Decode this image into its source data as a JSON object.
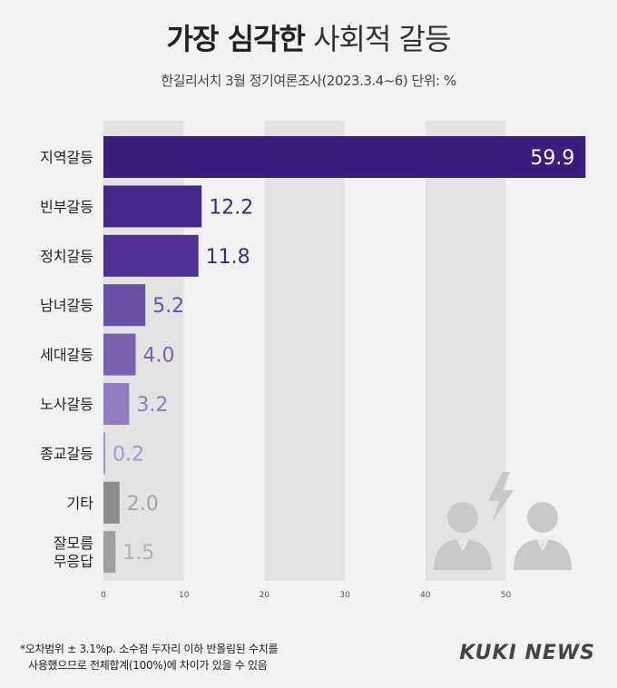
{
  "header": {
    "title_bold": "가장 심각한",
    "title_light": "사회적 갈등",
    "subtitle": "한길리서치 3월 정기여론조사(2023.3.4~6) 단위: %"
  },
  "chart_data": {
    "type": "bar",
    "orientation": "horizontal",
    "categories": [
      "지역갈등",
      "빈부갈등",
      "정치갈등",
      "남녀갈등",
      "세대갈등",
      "노사갈등",
      "종교갈등",
      "기타",
      "잘모름 무응답"
    ],
    "values": [
      59.9,
      12.2,
      11.8,
      5.2,
      4.0,
      3.2,
      0.2,
      2.0,
      1.5
    ],
    "value_labels": [
      "59.9",
      "12.2",
      "11.8",
      "5.2",
      "4.0",
      "3.2",
      "0.2",
      "2.0",
      "1.5"
    ],
    "category_lines": [
      [
        "지역갈등"
      ],
      [
        "빈부갈등"
      ],
      [
        "정치갈등"
      ],
      [
        "남녀갈등"
      ],
      [
        "세대갈등"
      ],
      [
        "노사갈등"
      ],
      [
        "종교갈등"
      ],
      [
        "기타"
      ],
      [
        "잘모름",
        "무응답"
      ]
    ],
    "bar_colors": [
      "#3a1d7d",
      "#45288a",
      "#4e3192",
      "#6a4fa6",
      "#7a62b0",
      "#8f7bbd",
      "#a898cc",
      "#8c8c8c",
      "#a0a0a0"
    ],
    "value_label_colors": [
      "#ffffff",
      "#3f2a86",
      "#3f2a86",
      "#6a4fa6",
      "#7a62b0",
      "#8f7bbd",
      "#a898cc",
      "#a6a6a6",
      "#b0b0b0"
    ],
    "xlim": [
      0,
      60
    ],
    "xticks": [
      0,
      10,
      20,
      30,
      40,
      50
    ],
    "grid": "alternating vertical bands"
  },
  "footnote": {
    "line1": "*오차범위 ± 3.1%p. 소수점 두자리 이하 반올림된 수치를",
    "line2": "사용했으므로 전체합계(100%)에 차이가 있을 수 있음"
  },
  "brand": "KUKI NEWS",
  "decoration": {
    "icon": "people-conflict-icon"
  }
}
